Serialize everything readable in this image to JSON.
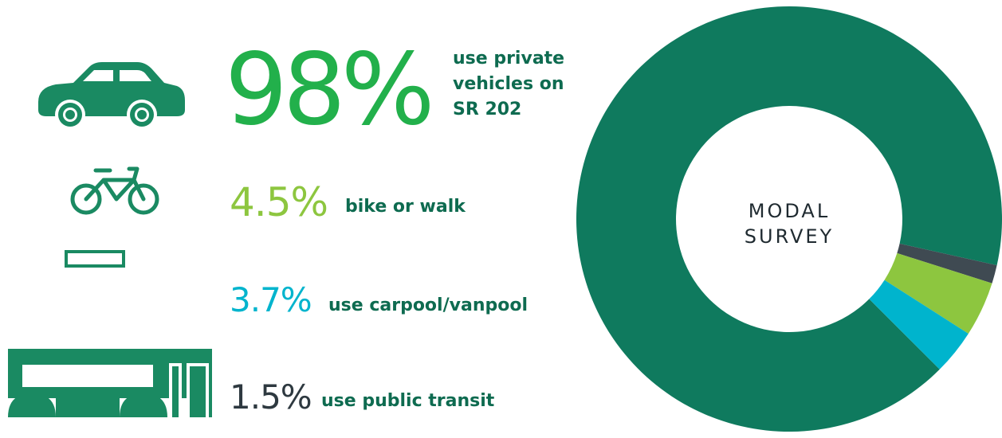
{
  "chart_data": {
    "type": "donut",
    "center_label": [
      "MODAL",
      "SURVEY"
    ],
    "values": [
      98,
      1.5,
      4.5,
      3.7
    ],
    "value_labels": [
      "98%",
      "1.5%",
      "4.5%",
      "3.7%"
    ],
    "labels": [
      [
        "use private",
        "vehicles on",
        "SR 202"
      ],
      [
        "use public transit"
      ],
      [
        "bike or walk"
      ],
      [
        "use carpool/vanpool"
      ]
    ],
    "colors": [
      "#0f7a5e",
      "#3f4a52",
      "#8dc63f",
      "#00b4cd"
    ],
    "value_label_colors": [
      "#22b04b",
      "#2e3940",
      "#8dc63f",
      "#00b4cd"
    ],
    "label_color": "#0e6b50"
  }
}
